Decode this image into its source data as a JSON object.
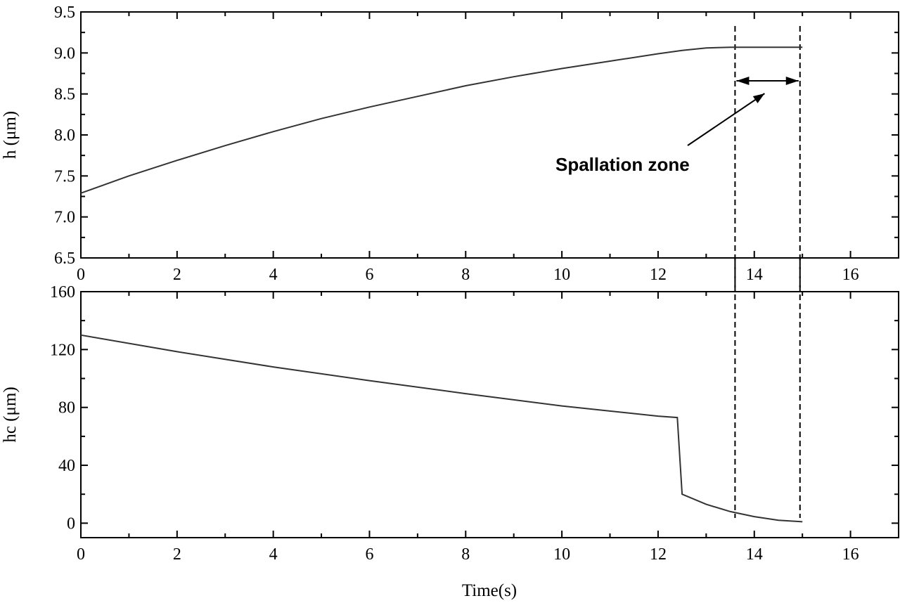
{
  "chart_data": [
    {
      "type": "line",
      "ylabel": "h (μm)",
      "xlim": [
        0,
        17
      ],
      "ylim": [
        6.5,
        9.5
      ],
      "x_ticks": [
        "0",
        "2",
        "4",
        "6",
        "8",
        "10",
        "12",
        "14",
        "16"
      ],
      "y_ticks": [
        "6.5",
        "7.0",
        "7.5",
        "8.0",
        "8.5",
        "9.0",
        "9.5"
      ],
      "series": [
        {
          "x": [
            0,
            1,
            2,
            3,
            4,
            5,
            6,
            7,
            8,
            9,
            10,
            11,
            12,
            12.5,
            13,
            13.5,
            14,
            14.5,
            15
          ],
          "y": [
            7.29,
            7.5,
            7.69,
            7.87,
            8.04,
            8.2,
            8.34,
            8.47,
            8.6,
            8.71,
            8.81,
            8.9,
            8.99,
            9.03,
            9.06,
            9.07,
            9.07,
            9.07,
            9.07
          ]
        }
      ],
      "vlines": [
        13.6,
        14.95
      ],
      "annotation": {
        "text": "Spallation zone",
        "arrow_range": [
          13.6,
          14.95
        ],
        "arrow_y": 8.66
      }
    },
    {
      "type": "line",
      "xlabel": "Time(s)",
      "ylabel": "hc (μm)",
      "xlim": [
        0,
        17
      ],
      "ylim": [
        -10,
        160
      ],
      "x_ticks": [
        "0",
        "2",
        "4",
        "6",
        "8",
        "10",
        "12",
        "14",
        "16"
      ],
      "y_ticks": [
        "0",
        "40",
        "80",
        "120",
        "160"
      ],
      "series": [
        {
          "x": [
            0,
            2,
            4,
            6,
            8,
            10,
            12,
            12.4,
            12.5,
            13,
            13.5,
            14,
            14.5,
            15
          ],
          "y": [
            130,
            118.5,
            108,
            98.5,
            89.5,
            81,
            74,
            73,
            20,
            13,
            8,
            4.5,
            2,
            1
          ]
        }
      ],
      "vlines": [
        13.6,
        14.95
      ]
    }
  ]
}
